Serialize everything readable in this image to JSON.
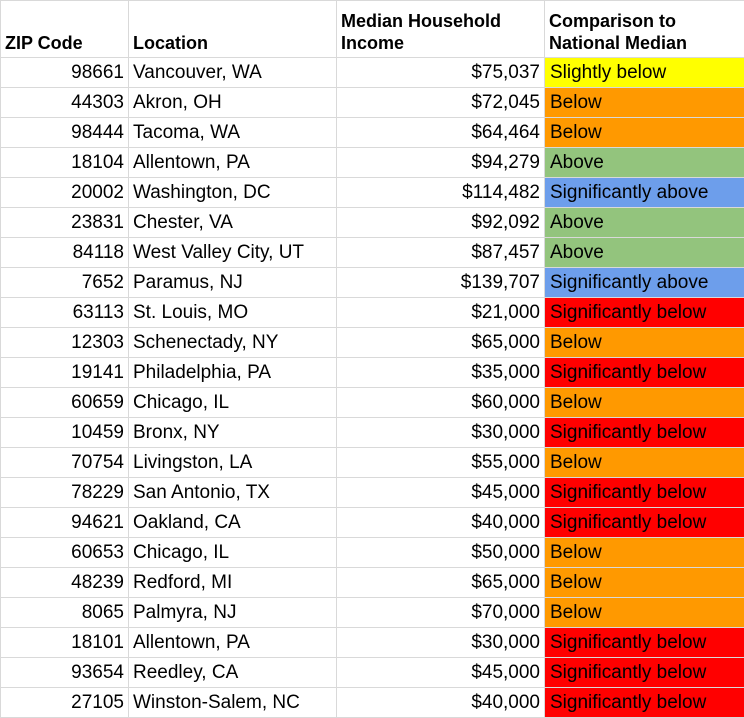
{
  "headers": {
    "zip": "ZIP Code",
    "location": "Location",
    "income": "Median Household Income",
    "comparison": "Comparison to National Median"
  },
  "comparison_colors": {
    "Slightly below": "#ffff00",
    "Below": "#ff9900",
    "Above": "#93c47d",
    "Significantly above": "#6d9eeb",
    "Significantly below": "#ff0000"
  },
  "rows": [
    {
      "zip": "98661",
      "location": "Vancouver, WA",
      "income": "$75,037",
      "comparison": "Slightly below"
    },
    {
      "zip": "44303",
      "location": "Akron, OH",
      "income": "$72,045",
      "comparison": "Below"
    },
    {
      "zip": "98444",
      "location": "Tacoma, WA",
      "income": "$64,464",
      "comparison": "Below"
    },
    {
      "zip": "18104",
      "location": "Allentown, PA",
      "income": "$94,279",
      "comparison": "Above"
    },
    {
      "zip": "20002",
      "location": "Washington, DC",
      "income": "$114,482",
      "comparison": "Significantly above"
    },
    {
      "zip": "23831",
      "location": "Chester, VA",
      "income": "$92,092",
      "comparison": "Above"
    },
    {
      "zip": "84118",
      "location": "West Valley City, UT",
      "income": "$87,457",
      "comparison": "Above"
    },
    {
      "zip": "7652",
      "location": "Paramus, NJ",
      "income": "$139,707",
      "comparison": "Significantly above"
    },
    {
      "zip": "63113",
      "location": "St. Louis, MO",
      "income": "$21,000",
      "comparison": "Significantly below"
    },
    {
      "zip": "12303",
      "location": "Schenectady, NY",
      "income": "$65,000",
      "comparison": "Below"
    },
    {
      "zip": "19141",
      "location": "Philadelphia, PA",
      "income": "$35,000",
      "comparison": "Significantly below"
    },
    {
      "zip": "60659",
      "location": "Chicago, IL",
      "income": "$60,000",
      "comparison": "Below"
    },
    {
      "zip": "10459",
      "location": "Bronx, NY",
      "income": "$30,000",
      "comparison": "Significantly below"
    },
    {
      "zip": "70754",
      "location": "Livingston, LA",
      "income": "$55,000",
      "comparison": "Below"
    },
    {
      "zip": "78229",
      "location": "San Antonio, TX",
      "income": "$45,000",
      "comparison": "Significantly below"
    },
    {
      "zip": "94621",
      "location": "Oakland, CA",
      "income": "$40,000",
      "comparison": "Significantly below"
    },
    {
      "zip": "60653",
      "location": "Chicago, IL",
      "income": "$50,000",
      "comparison": "Below"
    },
    {
      "zip": "48239",
      "location": "Redford, MI",
      "income": "$65,000",
      "comparison": "Below"
    },
    {
      "zip": "8065",
      "location": "Palmyra, NJ",
      "income": "$70,000",
      "comparison": "Below"
    },
    {
      "zip": "18101",
      "location": "Allentown, PA",
      "income": "$30,000",
      "comparison": "Significantly below"
    },
    {
      "zip": "93654",
      "location": "Reedley, CA",
      "income": "$45,000",
      "comparison": "Significantly below"
    },
    {
      "zip": "27105",
      "location": "Winston-Salem, NC",
      "income": "$40,000",
      "comparison": "Significantly below"
    }
  ]
}
